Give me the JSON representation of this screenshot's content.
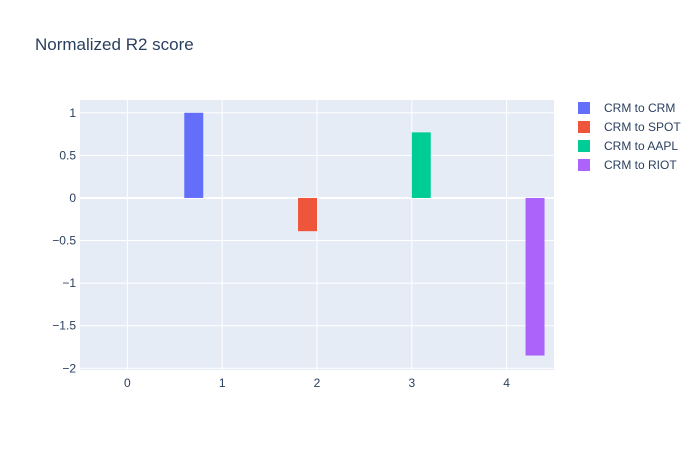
{
  "chart_data": {
    "type": "bar",
    "title": "Normalized R2 score",
    "xlabel": "",
    "ylabel": "",
    "x_ticks": [
      0,
      1,
      2,
      3,
      4
    ],
    "y_ticks": [
      1,
      0.5,
      0,
      -0.5,
      -1,
      -1.5,
      -2
    ],
    "y_tick_labels": [
      "1",
      "0.5",
      "0",
      "−0.5",
      "−1",
      "−1.5",
      "−2"
    ],
    "xlim": [
      -0.5,
      4.5
    ],
    "ylim": [
      -2.02,
      1.15
    ],
    "grid": true,
    "legend_position": "top-right",
    "series": [
      {
        "name": "CRM to CRM",
        "color": "#636efa",
        "points": [
          {
            "x": 0,
            "y": 0
          },
          {
            "x": 1,
            "y": 1
          },
          {
            "x": 2,
            "y": 0
          },
          {
            "x": 3,
            "y": 0
          },
          {
            "x": 4,
            "y": 0
          }
        ]
      },
      {
        "name": "CRM to SPOT",
        "color": "#ef553b",
        "points": [
          {
            "x": 0,
            "y": 0
          },
          {
            "x": 1,
            "y": 0
          },
          {
            "x": 2,
            "y": -0.39
          },
          {
            "x": 3,
            "y": 0
          },
          {
            "x": 4,
            "y": 0
          }
        ]
      },
      {
        "name": "CRM to AAPL",
        "color": "#00cc96",
        "points": [
          {
            "x": 0,
            "y": 0
          },
          {
            "x": 1,
            "y": 0
          },
          {
            "x": 2,
            "y": 0
          },
          {
            "x": 3,
            "y": 0.77
          },
          {
            "x": 4,
            "y": 0
          }
        ]
      },
      {
        "name": "CRM to RIOT",
        "color": "#ab63fa",
        "points": [
          {
            "x": 0,
            "y": 0
          },
          {
            "x": 1,
            "y": 0
          },
          {
            "x": 2,
            "y": 0
          },
          {
            "x": 3,
            "y": 0
          },
          {
            "x": 4,
            "y": -1.85
          }
        ]
      }
    ],
    "colors": {
      "plot_bg": "#e5ecf6",
      "grid": "#ffffff",
      "text": "#2a3f5f"
    }
  }
}
